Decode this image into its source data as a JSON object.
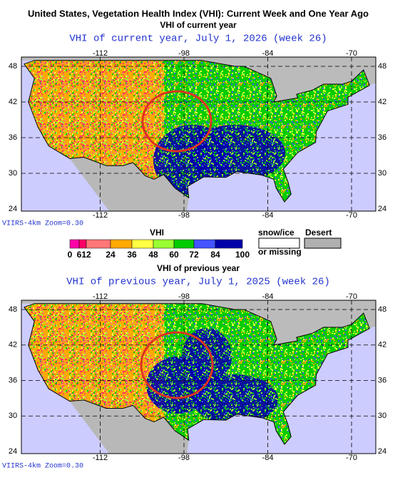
{
  "header": {
    "title": "United States, Vegetation Health Index (VHI): Current Week and One Year Ago"
  },
  "panels": [
    {
      "caption": "VHI of current year",
      "heading": "VHI of current year, July 1, 2026 (week 26)",
      "lon_labels": [
        "-112",
        "-98",
        "-84",
        "-70"
      ],
      "lat_labels": [
        "48",
        "42",
        "36",
        "30",
        "24"
      ],
      "footer": "VIIRS-4km Zoom=0.30"
    },
    {
      "caption": "VHI of previous year",
      "heading": "VHI of previous year, July 1, 2025 (week 26)",
      "lon_labels": [
        "-112",
        "-98",
        "-84",
        "-70"
      ],
      "lat_labels": [
        "48",
        "42",
        "36",
        "30",
        "24"
      ],
      "footer": "VIIRS-4km Zoom=0.30"
    }
  ],
  "legend": {
    "title": "VHI",
    "scale": [
      "0",
      "6",
      "12",
      "24",
      "36",
      "48",
      "60",
      "72",
      "84",
      "100"
    ],
    "snow": "snow/ice",
    "missing": "or missing",
    "desert": "Desert"
  }
}
